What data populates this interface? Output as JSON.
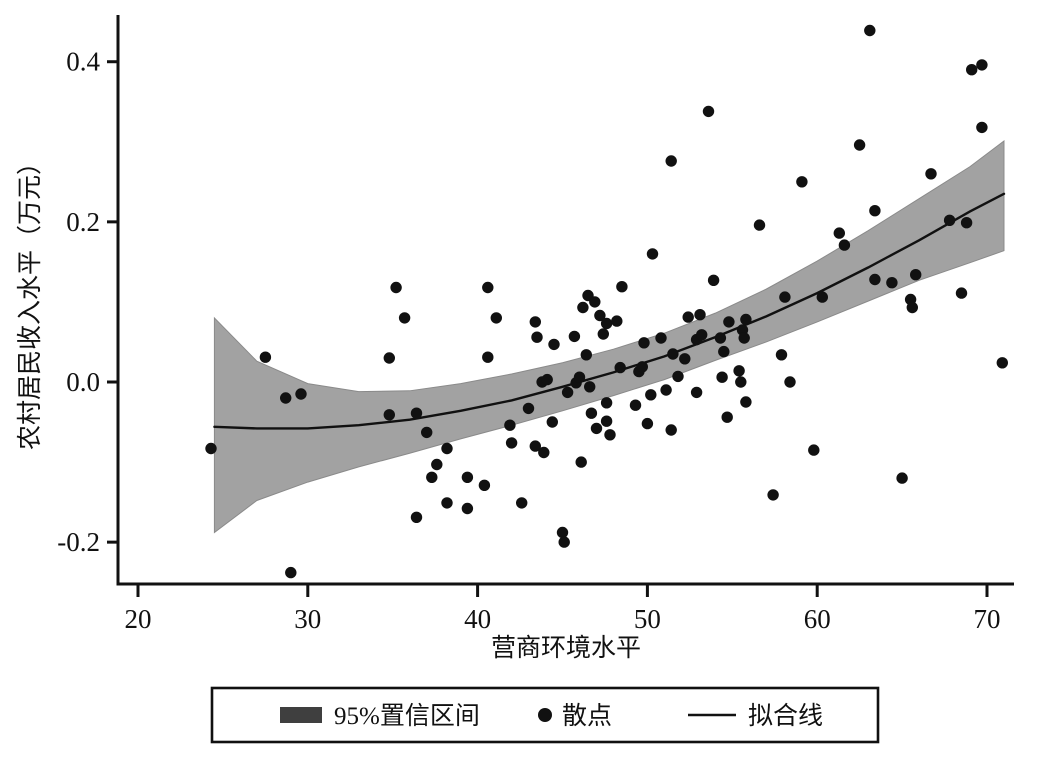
{
  "figure": {
    "background": "#ffffff",
    "ink_color": "#111111"
  },
  "chart_data": {
    "type": "scatter",
    "title": "",
    "xlabel": "营商环境水平",
    "ylabel": "农村居民收入水平（万元）",
    "x_ticks": [
      20,
      30,
      40,
      50,
      60,
      70
    ],
    "x_tick_labels": [
      "20",
      "30",
      "40",
      "50",
      "60",
      "70"
    ],
    "y_ticks": [
      -0.2,
      0.0,
      0.2,
      0.4
    ],
    "y_tick_labels": [
      "-0.2",
      "0.0",
      "0.2",
      "0.4"
    ],
    "xlim": [
      18.8,
      71.6
    ],
    "ylim": [
      -0.252,
      0.458
    ],
    "grid": false,
    "legend_position": "bottom",
    "series": {
      "band": {
        "name": "95%置信区间",
        "type": "area",
        "fill_color": "#a2a2a2",
        "edge_color": "#8a8a8a",
        "x": [
          24.5,
          27.0,
          30.0,
          33.0,
          36.0,
          39.0,
          42.0,
          45.0,
          48.0,
          51.0,
          54.0,
          57.0,
          60.0,
          63.0,
          66.0,
          69.0,
          71.0
        ],
        "upper": [
          0.08,
          0.026,
          -0.002,
          -0.012,
          -0.011,
          -0.002,
          0.01,
          0.024,
          0.041,
          0.061,
          0.086,
          0.116,
          0.151,
          0.189,
          0.229,
          0.269,
          0.301
        ],
        "lower": [
          -0.188,
          -0.148,
          -0.125,
          -0.106,
          -0.089,
          -0.071,
          -0.054,
          -0.036,
          -0.017,
          0.003,
          0.027,
          0.05,
          0.075,
          0.101,
          0.127,
          0.149,
          0.164
        ]
      },
      "fit_line": {
        "name": "拟合线",
        "type": "line",
        "color": "#111111",
        "x": [
          24.5,
          27.0,
          30.0,
          33.0,
          36.0,
          39.0,
          42.0,
          45.0,
          48.0,
          51.0,
          54.0,
          57.0,
          60.0,
          63.0,
          66.0,
          69.0,
          71.0
        ],
        "y": [
          -0.056,
          -0.058,
          -0.058,
          -0.054,
          -0.047,
          -0.036,
          -0.023,
          -0.006,
          0.012,
          0.032,
          0.056,
          0.082,
          0.111,
          0.143,
          0.177,
          0.213,
          0.235
        ]
      },
      "scatter": {
        "name": "散点",
        "type": "scatter",
        "color": "#111111",
        "points": [
          [
            24.3,
            -0.083
          ],
          [
            27.5,
            0.031
          ],
          [
            28.7,
            -0.02
          ],
          [
            29.0,
            -0.238
          ],
          [
            29.6,
            -0.015
          ],
          [
            34.8,
            0.03
          ],
          [
            34.8,
            -0.041
          ],
          [
            35.2,
            0.118
          ],
          [
            35.7,
            0.08
          ],
          [
            36.4,
            -0.039
          ],
          [
            36.4,
            -0.169
          ],
          [
            37.0,
            -0.063
          ],
          [
            37.3,
            -0.119
          ],
          [
            37.6,
            -0.103
          ],
          [
            38.2,
            -0.083
          ],
          [
            38.2,
            -0.151
          ],
          [
            39.4,
            -0.119
          ],
          [
            39.4,
            -0.158
          ],
          [
            40.4,
            -0.129
          ],
          [
            40.6,
            0.031
          ],
          [
            40.6,
            0.118
          ],
          [
            41.1,
            0.08
          ],
          [
            41.9,
            -0.054
          ],
          [
            42.0,
            -0.076
          ],
          [
            42.6,
            -0.151
          ],
          [
            43.0,
            -0.033
          ],
          [
            43.4,
            0.075
          ],
          [
            43.4,
            -0.08
          ],
          [
            43.5,
            0.056
          ],
          [
            43.8,
            0.0
          ],
          [
            43.9,
            -0.088
          ],
          [
            44.1,
            0.003
          ],
          [
            44.4,
            -0.05
          ],
          [
            44.5,
            0.047
          ],
          [
            45.0,
            -0.188
          ],
          [
            45.1,
            -0.2
          ],
          [
            45.3,
            -0.013
          ],
          [
            45.7,
            0.057
          ],
          [
            45.8,
            -0.001
          ],
          [
            46.0,
            0.006
          ],
          [
            46.1,
            -0.1
          ],
          [
            46.2,
            0.093
          ],
          [
            46.4,
            0.034
          ],
          [
            46.5,
            0.108
          ],
          [
            46.6,
            -0.006
          ],
          [
            46.7,
            -0.039
          ],
          [
            46.9,
            0.1
          ],
          [
            47.0,
            -0.058
          ],
          [
            47.2,
            0.083
          ],
          [
            47.4,
            0.06
          ],
          [
            47.6,
            0.073
          ],
          [
            47.6,
            -0.026
          ],
          [
            47.6,
            -0.049
          ],
          [
            47.8,
            -0.066
          ],
          [
            48.2,
            0.076
          ],
          [
            48.4,
            0.018
          ],
          [
            48.5,
            0.119
          ],
          [
            49.3,
            -0.029
          ],
          [
            49.5,
            0.013
          ],
          [
            49.7,
            0.019
          ],
          [
            49.8,
            0.049
          ],
          [
            50.0,
            -0.052
          ],
          [
            50.2,
            -0.016
          ],
          [
            50.3,
            0.16
          ],
          [
            50.8,
            0.055
          ],
          [
            51.1,
            -0.01
          ],
          [
            51.4,
            0.276
          ],
          [
            51.4,
            -0.06
          ],
          [
            51.5,
            0.035
          ],
          [
            51.8,
            0.007
          ],
          [
            52.2,
            0.029
          ],
          [
            52.4,
            0.081
          ],
          [
            52.9,
            0.053
          ],
          [
            52.9,
            -0.013
          ],
          [
            53.1,
            0.084
          ],
          [
            53.2,
            0.059
          ],
          [
            53.6,
            0.338
          ],
          [
            53.9,
            0.127
          ],
          [
            54.3,
            0.055
          ],
          [
            54.4,
            0.006
          ],
          [
            54.5,
            0.038
          ],
          [
            54.7,
            -0.044
          ],
          [
            54.8,
            0.075
          ],
          [
            55.4,
            0.014
          ],
          [
            55.5,
            0.0
          ],
          [
            55.6,
            0.065
          ],
          [
            55.7,
            0.055
          ],
          [
            55.8,
            0.078
          ],
          [
            55.8,
            -0.025
          ],
          [
            56.6,
            0.196
          ],
          [
            57.4,
            -0.141
          ],
          [
            57.9,
            0.034
          ],
          [
            58.1,
            0.106
          ],
          [
            58.4,
            0.0
          ],
          [
            59.1,
            0.25
          ],
          [
            59.8,
            -0.085
          ],
          [
            60.3,
            0.106
          ],
          [
            61.3,
            0.186
          ],
          [
            61.6,
            0.171
          ],
          [
            62.5,
            0.296
          ],
          [
            63.1,
            0.439
          ],
          [
            63.4,
            0.214
          ],
          [
            63.4,
            0.128
          ],
          [
            64.4,
            0.124
          ],
          [
            65.0,
            -0.12
          ],
          [
            65.5,
            0.103
          ],
          [
            65.6,
            0.093
          ],
          [
            65.8,
            0.134
          ],
          [
            66.7,
            0.26
          ],
          [
            67.8,
            0.202
          ],
          [
            68.5,
            0.111
          ],
          [
            68.8,
            0.199
          ],
          [
            69.1,
            0.39
          ],
          [
            69.7,
            0.396
          ],
          [
            69.7,
            0.318
          ],
          [
            70.9,
            0.024
          ]
        ]
      }
    }
  },
  "legend": {
    "border_color": "#111111",
    "items": [
      {
        "kind": "band-swatch",
        "label": "95%置信区间",
        "swatch_color": "#3f3f3f"
      },
      {
        "kind": "point-marker",
        "label": "散点",
        "marker_color": "#111111"
      },
      {
        "kind": "line-sample",
        "label": "拟合线",
        "line_color": "#111111"
      }
    ]
  }
}
